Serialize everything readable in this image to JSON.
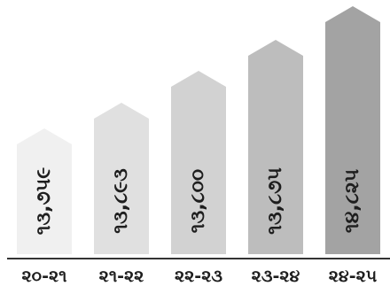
{
  "chart_data": {
    "type": "bar",
    "title": "",
    "xlabel": "",
    "ylabel": "",
    "categories": [
      "૨૦-૨૧",
      "૨૧-૨૨",
      "૨૨-૨૩",
      "૨૩-૨૪",
      "૨૪-૨૫"
    ],
    "values": [
      13759,
      13893,
      13800,
      13875,
      14825
    ],
    "value_labels": [
      "૧૩,૭૫૯",
      "૧૩,૮૯૩",
      "૧૩,૮૦૦",
      "૧૩,૮૭૫",
      "૧૪,૮૨૫"
    ],
    "bar_colors": [
      "#f0f0f0",
      "#e0e0e0",
      "#d2d2d2",
      "#bdbdbd",
      "#a3a3a3"
    ],
    "axis_color": "#333333",
    "grid": false,
    "legend": "none"
  }
}
